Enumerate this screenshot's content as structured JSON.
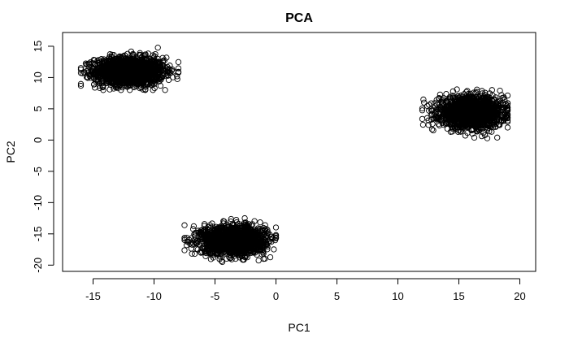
{
  "chart_data": {
    "type": "scatter",
    "title": "PCA",
    "xlabel": "PC1",
    "ylabel": "PC2",
    "xlim": [
      -17.5,
      21.3
    ],
    "ylim": [
      -21,
      17.2
    ],
    "x_ticks": [
      -15,
      -10,
      -5,
      0,
      5,
      10,
      15,
      20
    ],
    "y_ticks": [
      -20,
      -15,
      -10,
      -5,
      0,
      5,
      10,
      15
    ],
    "grid": false,
    "legend": "none",
    "point_color": "#000000",
    "marker": "open-circle",
    "clusters": [
      {
        "center": [
          -12,
          11
        ],
        "spread": [
          1.4,
          1.1
        ],
        "count": 1800,
        "x_range": [
          -16,
          -8
        ],
        "y_range": [
          8,
          15.8
        ]
      },
      {
        "center": [
          16,
          4.5
        ],
        "spread": [
          1.3,
          1.2
        ],
        "count": 1800,
        "x_range": [
          12,
          19
        ],
        "y_range": [
          0,
          8.5
        ]
      },
      {
        "center": [
          -3.5,
          -16
        ],
        "spread": [
          1.3,
          1.1
        ],
        "count": 1800,
        "x_range": [
          -7.5,
          0
        ],
        "y_range": [
          -19.5,
          -12.5
        ]
      }
    ]
  }
}
